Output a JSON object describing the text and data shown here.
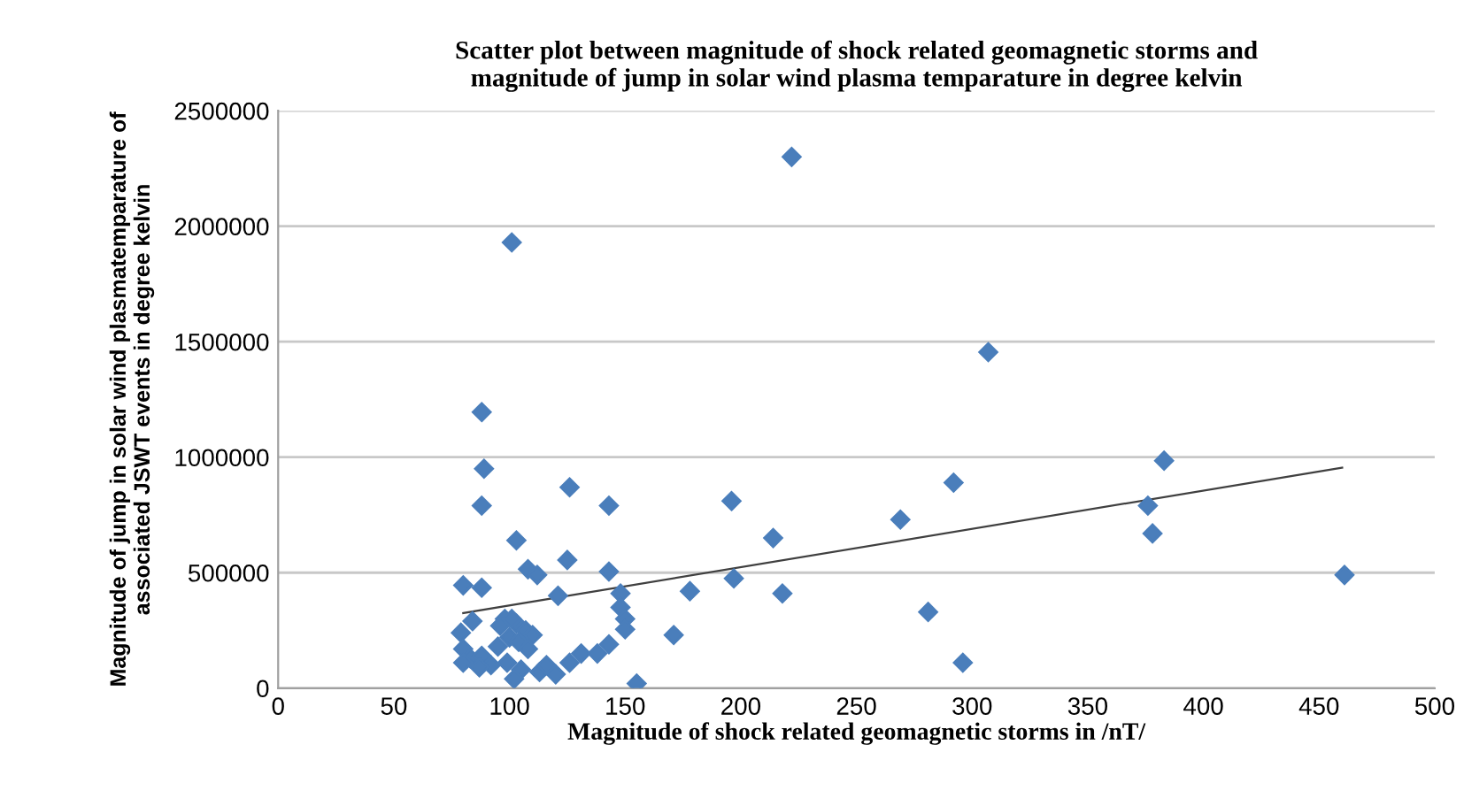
{
  "chart_data": {
    "type": "scatter",
    "title": "Scatter plot between magnitude of shock related geomagnetic storms and\nmagnitude of jump in solar wind plasma temparature in degree kelvin",
    "xlabel": "Magnitude of shock related geomagnetic storms in /nT/",
    "ylabel": "Magnitude of jump in solar wind plasmatemparature of\nassociated JSWT events in degree kelvin",
    "xlim": [
      0,
      500
    ],
    "xticks": [
      0,
      50,
      100,
      150,
      200,
      250,
      300,
      350,
      400,
      450,
      500
    ],
    "ylim": [
      0,
      2500000
    ],
    "yticks": [
      0,
      500000,
      1000000,
      1500000,
      2000000,
      2500000
    ],
    "grid": "y",
    "legend": false,
    "marker": "diamond",
    "series": [
      {
        "color": "#4a7ebb",
        "x": [
          222,
          101,
          307,
          88,
          89,
          383,
          292,
          126,
          376,
          88,
          143,
          196,
          378,
          269,
          103,
          214,
          125,
          143,
          108,
          112,
          461,
          197,
          218,
          80,
          88,
          148,
          121,
          148,
          150,
          150,
          178,
          281,
          296,
          171,
          155,
          84,
          79,
          98,
          103,
          107,
          110,
          96,
          100,
          80,
          83,
          88,
          92,
          80,
          87,
          99,
          105,
          113,
          120,
          102,
          126,
          131,
          138,
          143,
          116,
          95,
          104,
          108,
          101
        ],
        "values": [
          2300000,
          1930000,
          1455000,
          1195000,
          950000,
          985000,
          890000,
          870000,
          790000,
          790000,
          790000,
          810000,
          670000,
          730000,
          640000,
          650000,
          555000,
          505000,
          515000,
          490000,
          490000,
          475000,
          410000,
          445000,
          435000,
          410000,
          400000,
          350000,
          300000,
          255000,
          420000,
          330000,
          110000,
          230000,
          20000,
          290000,
          240000,
          300000,
          280000,
          250000,
          230000,
          270000,
          220000,
          170000,
          130000,
          140000,
          100000,
          110000,
          90000,
          110000,
          80000,
          70000,
          60000,
          40000,
          110000,
          150000,
          150000,
          190000,
          100000,
          180000,
          200000,
          170000,
          300000
        ]
      },
      {
        "type": "line",
        "color": "#404040",
        "marker": "none",
        "x": [
          80,
          460
        ],
        "values": [
          325000,
          955000
        ]
      }
    ]
  }
}
